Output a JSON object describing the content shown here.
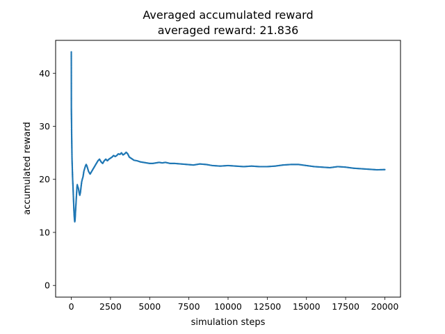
{
  "chart_data": {
    "type": "scatter",
    "title": "Averaged accumulated reward",
    "subtitle": "averaged reward: 21.836",
    "xlabel": "simulation steps",
    "ylabel": "accumulated reward",
    "xlim": [
      -1000,
      21000
    ],
    "ylim": [
      -2.2,
      46.2
    ],
    "x_ticks": [
      {
        "value": 0,
        "label": "0"
      },
      {
        "value": 2500,
        "label": "2500"
      },
      {
        "value": 5000,
        "label": "5000"
      },
      {
        "value": 7500,
        "label": "7500"
      },
      {
        "value": 10000,
        "label": "10000"
      },
      {
        "value": 12500,
        "label": "12500"
      },
      {
        "value": 15000,
        "label": "15000"
      },
      {
        "value": 17500,
        "label": "17500"
      },
      {
        "value": 20000,
        "label": "20000"
      }
    ],
    "y_ticks": [
      {
        "value": 0,
        "label": "0"
      },
      {
        "value": 10,
        "label": "10"
      },
      {
        "value": 20,
        "label": "20"
      },
      {
        "value": 30,
        "label": "30"
      },
      {
        "value": 40,
        "label": "40"
      }
    ],
    "grid": false,
    "marker_color": "#1f77b4",
    "series": [
      {
        "x": [
          0,
          1,
          2,
          3,
          4,
          5,
          6,
          8,
          10,
          12,
          15,
          18,
          20,
          25,
          30,
          35,
          40,
          45,
          50,
          60,
          70,
          80,
          90,
          100,
          110,
          120,
          130,
          140,
          150,
          160,
          170,
          180,
          190,
          200,
          220,
          240,
          260,
          280,
          300,
          320,
          340,
          360,
          380,
          400,
          430,
          460,
          500,
          540,
          580,
          620,
          660,
          700,
          750,
          800,
          850,
          900,
          950,
          1000,
          1100,
          1200,
          1300,
          1400,
          1500,
          1600,
          1700,
          1800,
          1900,
          2000,
          2100,
          2200,
          2300,
          2400,
          2500,
          2600,
          2700,
          2800,
          2900,
          3000,
          3100,
          3200,
          3300,
          3400,
          3500,
          3600,
          3700,
          3800,
          3900,
          4000,
          4200,
          4400,
          4600,
          4800,
          5000,
          5200,
          5400,
          5600,
          5800,
          6000,
          6300,
          6600,
          7000,
          7400,
          7800,
          8200,
          8600,
          9000,
          9500,
          10000,
          10500,
          11000,
          11500,
          12000,
          12500,
          13000,
          13500,
          14000,
          14500,
          15000,
          15500,
          16000,
          16500,
          17000,
          17500,
          18000,
          18500,
          19000,
          19500,
          20000
        ],
        "y": [
          44,
          44,
          42,
          38.5,
          35.5,
          33.5,
          33,
          32.5,
          32,
          31.5,
          31,
          30,
          29,
          28,
          27,
          26,
          25,
          24,
          23.5,
          22.5,
          21.5,
          20.5,
          19.8,
          19.2,
          18.5,
          17.8,
          17,
          16.3,
          15.5,
          14.8,
          14,
          13.4,
          13,
          12.5,
          12,
          12.3,
          13.5,
          14.5,
          15.5,
          16.5,
          17.5,
          18.5,
          19,
          18.7,
          18.5,
          18.2,
          17.5,
          17,
          17.5,
          18.5,
          19.5,
          20,
          20.5,
          21.5,
          22,
          22.5,
          22.8,
          22.5,
          21.5,
          21,
          21.5,
          22,
          22.5,
          23,
          23.5,
          23.8,
          23.3,
          23,
          23.5,
          23.8,
          23.5,
          23.8,
          24,
          24.2,
          24.5,
          24.3,
          24.5,
          24.8,
          24.7,
          25,
          24.6,
          24.8,
          25.1,
          24.8,
          24.2,
          24,
          23.8,
          23.6,
          23.5,
          23.3,
          23.2,
          23.1,
          23,
          23,
          23.1,
          23.2,
          23.1,
          23.2,
          23,
          23,
          22.9,
          22.8,
          22.7,
          22.9,
          22.8,
          22.6,
          22.5,
          22.6,
          22.5,
          22.4,
          22.5,
          22.4,
          22.4,
          22.5,
          22.7,
          22.8,
          22.8,
          22.6,
          22.4,
          22.3,
          22.2,
          22.4,
          22.3,
          22.1,
          22,
          21.9,
          21.8,
          21.84
        ]
      }
    ]
  }
}
